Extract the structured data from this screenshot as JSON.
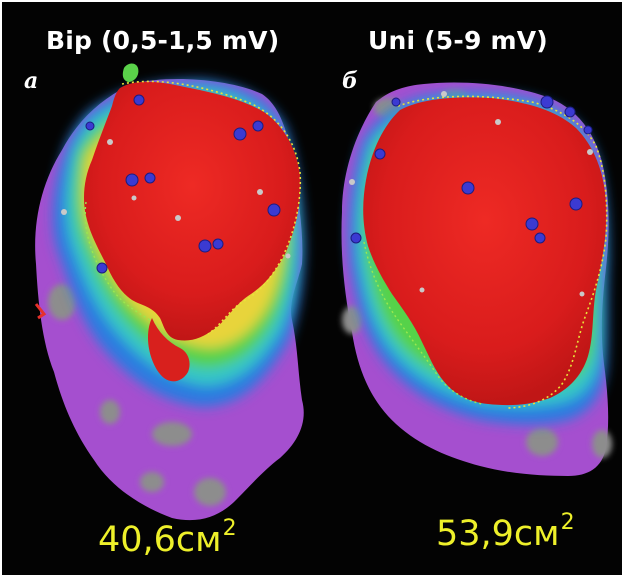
{
  "figure": {
    "panel_a": {
      "title": "Bip (0,5-1,5 mV)",
      "letter": "a",
      "area_value": "40,6см",
      "area_exp": "2"
    },
    "panel_b": {
      "title": "Uni (5-9 mV)",
      "letter": "б",
      "area_value": "53,9см",
      "area_exp": "2"
    },
    "colors": {
      "background": "#030303",
      "title_text": "#ffffff",
      "area_text": "#eef02a",
      "scar_red": "#e01f1f",
      "healthy_purple": "#a64fd0",
      "border_green": "#55d24a",
      "border_yellow": "#e6d53a",
      "border_blue": "#2f6fe0",
      "gray_patch": "#8c8c8c",
      "marker_blue": "#3a3ad0"
    }
  }
}
